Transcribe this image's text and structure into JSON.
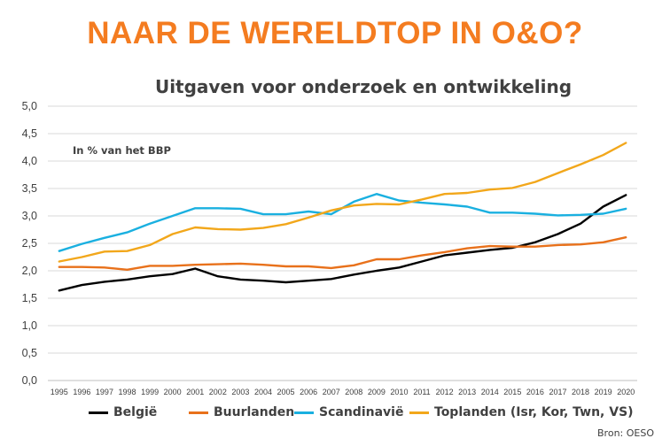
{
  "headline": "NAAR DE WERELDTOP IN O&O?",
  "colors": {
    "headline": "#f47c20",
    "grid": "#d9d9d9",
    "axis": "#bfbfbf"
  },
  "source": "Bron: OESO",
  "chart_data": {
    "type": "line",
    "title": "Uitgaven voor onderzoek en ontwikkeling",
    "units_note": "In % van het BBP",
    "xlabel": "",
    "ylabel": "",
    "ylim": [
      0,
      5
    ],
    "grid": true,
    "legend_position": "bottom",
    "yticks": [
      "0,0",
      "0,5",
      "1,0",
      "1,5",
      "2,0",
      "2,5",
      "3,0",
      "3,5",
      "4,0",
      "4,5",
      "5,0"
    ],
    "x": [
      "1995",
      "1996",
      "1997",
      "1998",
      "1999",
      "2000",
      "2001",
      "2002",
      "2003",
      "2004",
      "2005",
      "2006",
      "2007",
      "2008",
      "2009",
      "2010",
      "2011",
      "2012",
      "2013",
      "2014",
      "2015",
      "2016",
      "2017",
      "2018",
      "2019",
      "2020"
    ],
    "series": [
      {
        "name": "België",
        "color": "#000000",
        "values": [
          1.64,
          1.74,
          1.8,
          1.84,
          1.9,
          1.94,
          2.04,
          1.9,
          1.84,
          1.82,
          1.79,
          1.82,
          1.85,
          1.93,
          2.0,
          2.06,
          2.17,
          2.28,
          2.33,
          2.38,
          2.42,
          2.52,
          2.67,
          2.86,
          3.17,
          3.38
        ]
      },
      {
        "name": "Buurlanden",
        "color": "#e8711b",
        "values": [
          2.07,
          2.07,
          2.06,
          2.02,
          2.09,
          2.09,
          2.11,
          2.12,
          2.13,
          2.11,
          2.08,
          2.08,
          2.05,
          2.1,
          2.21,
          2.21,
          2.28,
          2.34,
          2.41,
          2.45,
          2.44,
          2.44,
          2.47,
          2.48,
          2.52,
          2.61
        ]
      },
      {
        "name": "Scandinavië",
        "color": "#1ab0e0",
        "values": [
          2.36,
          2.49,
          2.6,
          2.7,
          2.86,
          3.0,
          3.14,
          3.14,
          3.13,
          3.03,
          3.03,
          3.08,
          3.03,
          3.26,
          3.4,
          3.28,
          3.24,
          3.21,
          3.17,
          3.06,
          3.06,
          3.04,
          3.01,
          3.02,
          3.04,
          3.13
        ]
      },
      {
        "name": "Toplanden (Isr, Kor, Twn, VS)",
        "color": "#f2a71b",
        "values": [
          2.17,
          2.25,
          2.35,
          2.36,
          2.47,
          2.67,
          2.79,
          2.76,
          2.75,
          2.78,
          2.85,
          2.97,
          3.1,
          3.19,
          3.22,
          3.21,
          3.3,
          3.4,
          3.42,
          3.48,
          3.51,
          3.62,
          3.78,
          3.94,
          4.11,
          4.33
        ]
      }
    ]
  }
}
